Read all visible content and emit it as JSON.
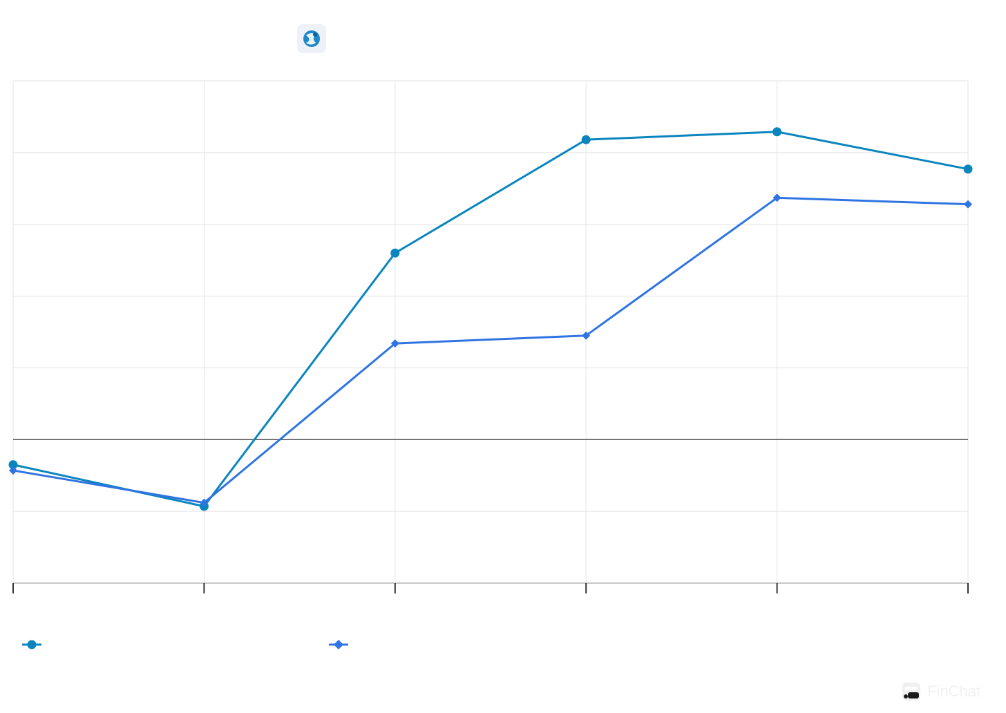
{
  "header": {
    "logo_icon": "s4-capital-logo-icon"
  },
  "chart_data": {
    "type": "line",
    "title": "",
    "xlabel": "",
    "ylabel": "",
    "x": [
      0,
      1,
      2,
      3,
      4,
      5
    ],
    "categories": [
      "",
      "",
      "",
      "",
      "",
      ""
    ],
    "ylim": [
      -2,
      5
    ],
    "yticks": [
      -2,
      -1,
      0,
      1,
      2,
      3,
      4,
      5
    ],
    "grid": true,
    "zero_line": true,
    "legend_position": "bottom-left",
    "series": [
      {
        "name": "",
        "color": "#0a85bd",
        "marker": "circle",
        "values": [
          -0.35,
          -0.93,
          2.6,
          4.18,
          4.29,
          3.77
        ]
      },
      {
        "name": "",
        "color": "#2f74e2",
        "marker": "diamond",
        "values": [
          -0.43,
          -0.88,
          1.34,
          1.45,
          3.37,
          3.28
        ]
      }
    ]
  },
  "watermark": {
    "brand_icon": "finchat-logo-icon",
    "text": "FinChat"
  }
}
